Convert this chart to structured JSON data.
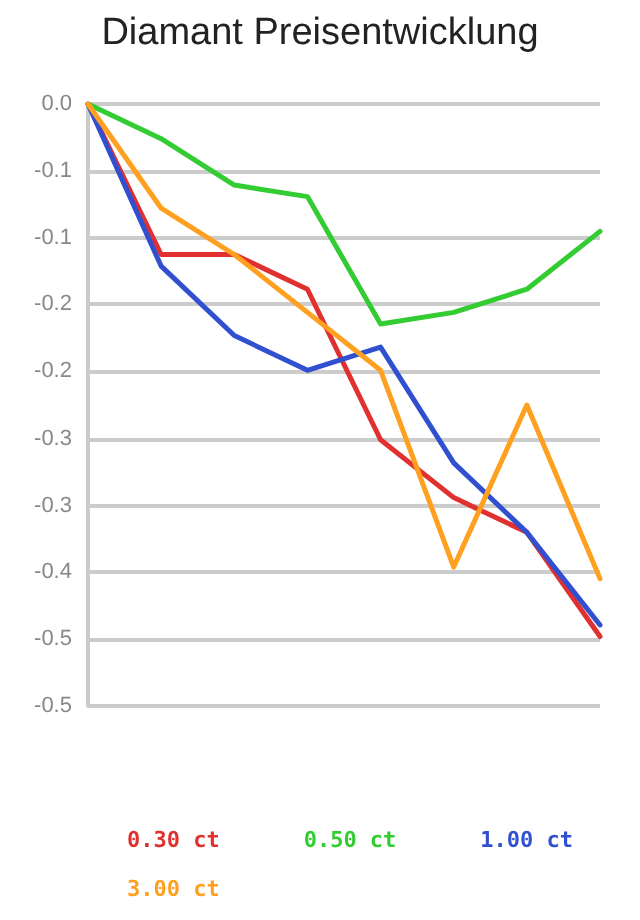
{
  "chart_data": {
    "type": "line",
    "title": "Diamant Preisentwicklung",
    "categories": [
      null,
      null,
      null,
      null,
      null,
      null,
      null,
      null
    ],
    "series": [
      {
        "name": "0.30 ct",
        "color": "#e03030",
        "values": [
          0,
          -0.13,
          -0.13,
          -0.16,
          -0.29,
          -0.34,
          -0.37,
          -0.46
        ]
      },
      {
        "name": "0.50 ct",
        "color": "#33cc33",
        "values": [
          0,
          -0.03,
          -0.07,
          -0.08,
          -0.19,
          -0.18,
          -0.16,
          -0.11
        ]
      },
      {
        "name": "1.00 ct",
        "color": "#3050d0",
        "values": [
          0,
          -0.14,
          -0.2,
          -0.23,
          -0.21,
          -0.31,
          -0.37,
          -0.45
        ]
      },
      {
        "name": "3.00 ct",
        "color": "#ffa020",
        "values": [
          0,
          -0.09,
          -0.13,
          -0.18,
          -0.23,
          -0.4,
          -0.26,
          -0.41
        ]
      }
    ],
    "ylim": [
      -0.52,
      0
    ],
    "yticks": [
      {
        "value": 0,
        "label": "0.0"
      },
      {
        "value": -0.058,
        "label": "-0.1"
      },
      {
        "value": -0.116,
        "label": "-0.1"
      },
      {
        "value": -0.173,
        "label": "-0.2"
      },
      {
        "value": -0.231,
        "label": "-0.2"
      },
      {
        "value": -0.289,
        "label": "-0.3"
      },
      {
        "value": -0.347,
        "label": "-0.3"
      },
      {
        "value": -0.404,
        "label": "-0.4"
      },
      {
        "value": -0.462,
        "label": "-0.5"
      },
      {
        "value": -0.52,
        "label": "-0.5"
      }
    ],
    "grid": "y",
    "legend": "bottom",
    "marker": "none",
    "line_style": "solid"
  }
}
